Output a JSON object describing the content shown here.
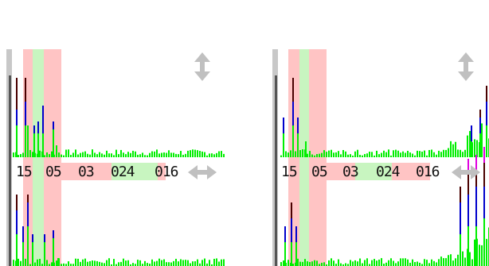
{
  "colors": {
    "band_red": "#ffc4c4",
    "band_green": "#c8f5c0",
    "scrollbar": "#c8c8c8",
    "bar_green": "#00ee00",
    "bar_blue": "#0000cc",
    "bar_dark": "#4a0000",
    "bar_magenta": "#e000e0",
    "arrow": "#c0c0c0"
  },
  "icons": {
    "vertical": "up-down-arrow-icon",
    "horizontal": "left-right-arrow-icon"
  },
  "panels": [
    {
      "id": "left",
      "ticks": [
        "15",
        "05",
        "03",
        "024",
        "016"
      ]
    },
    {
      "id": "right",
      "ticks": [
        "15",
        "05",
        "03",
        "024",
        "016"
      ]
    }
  ]
}
